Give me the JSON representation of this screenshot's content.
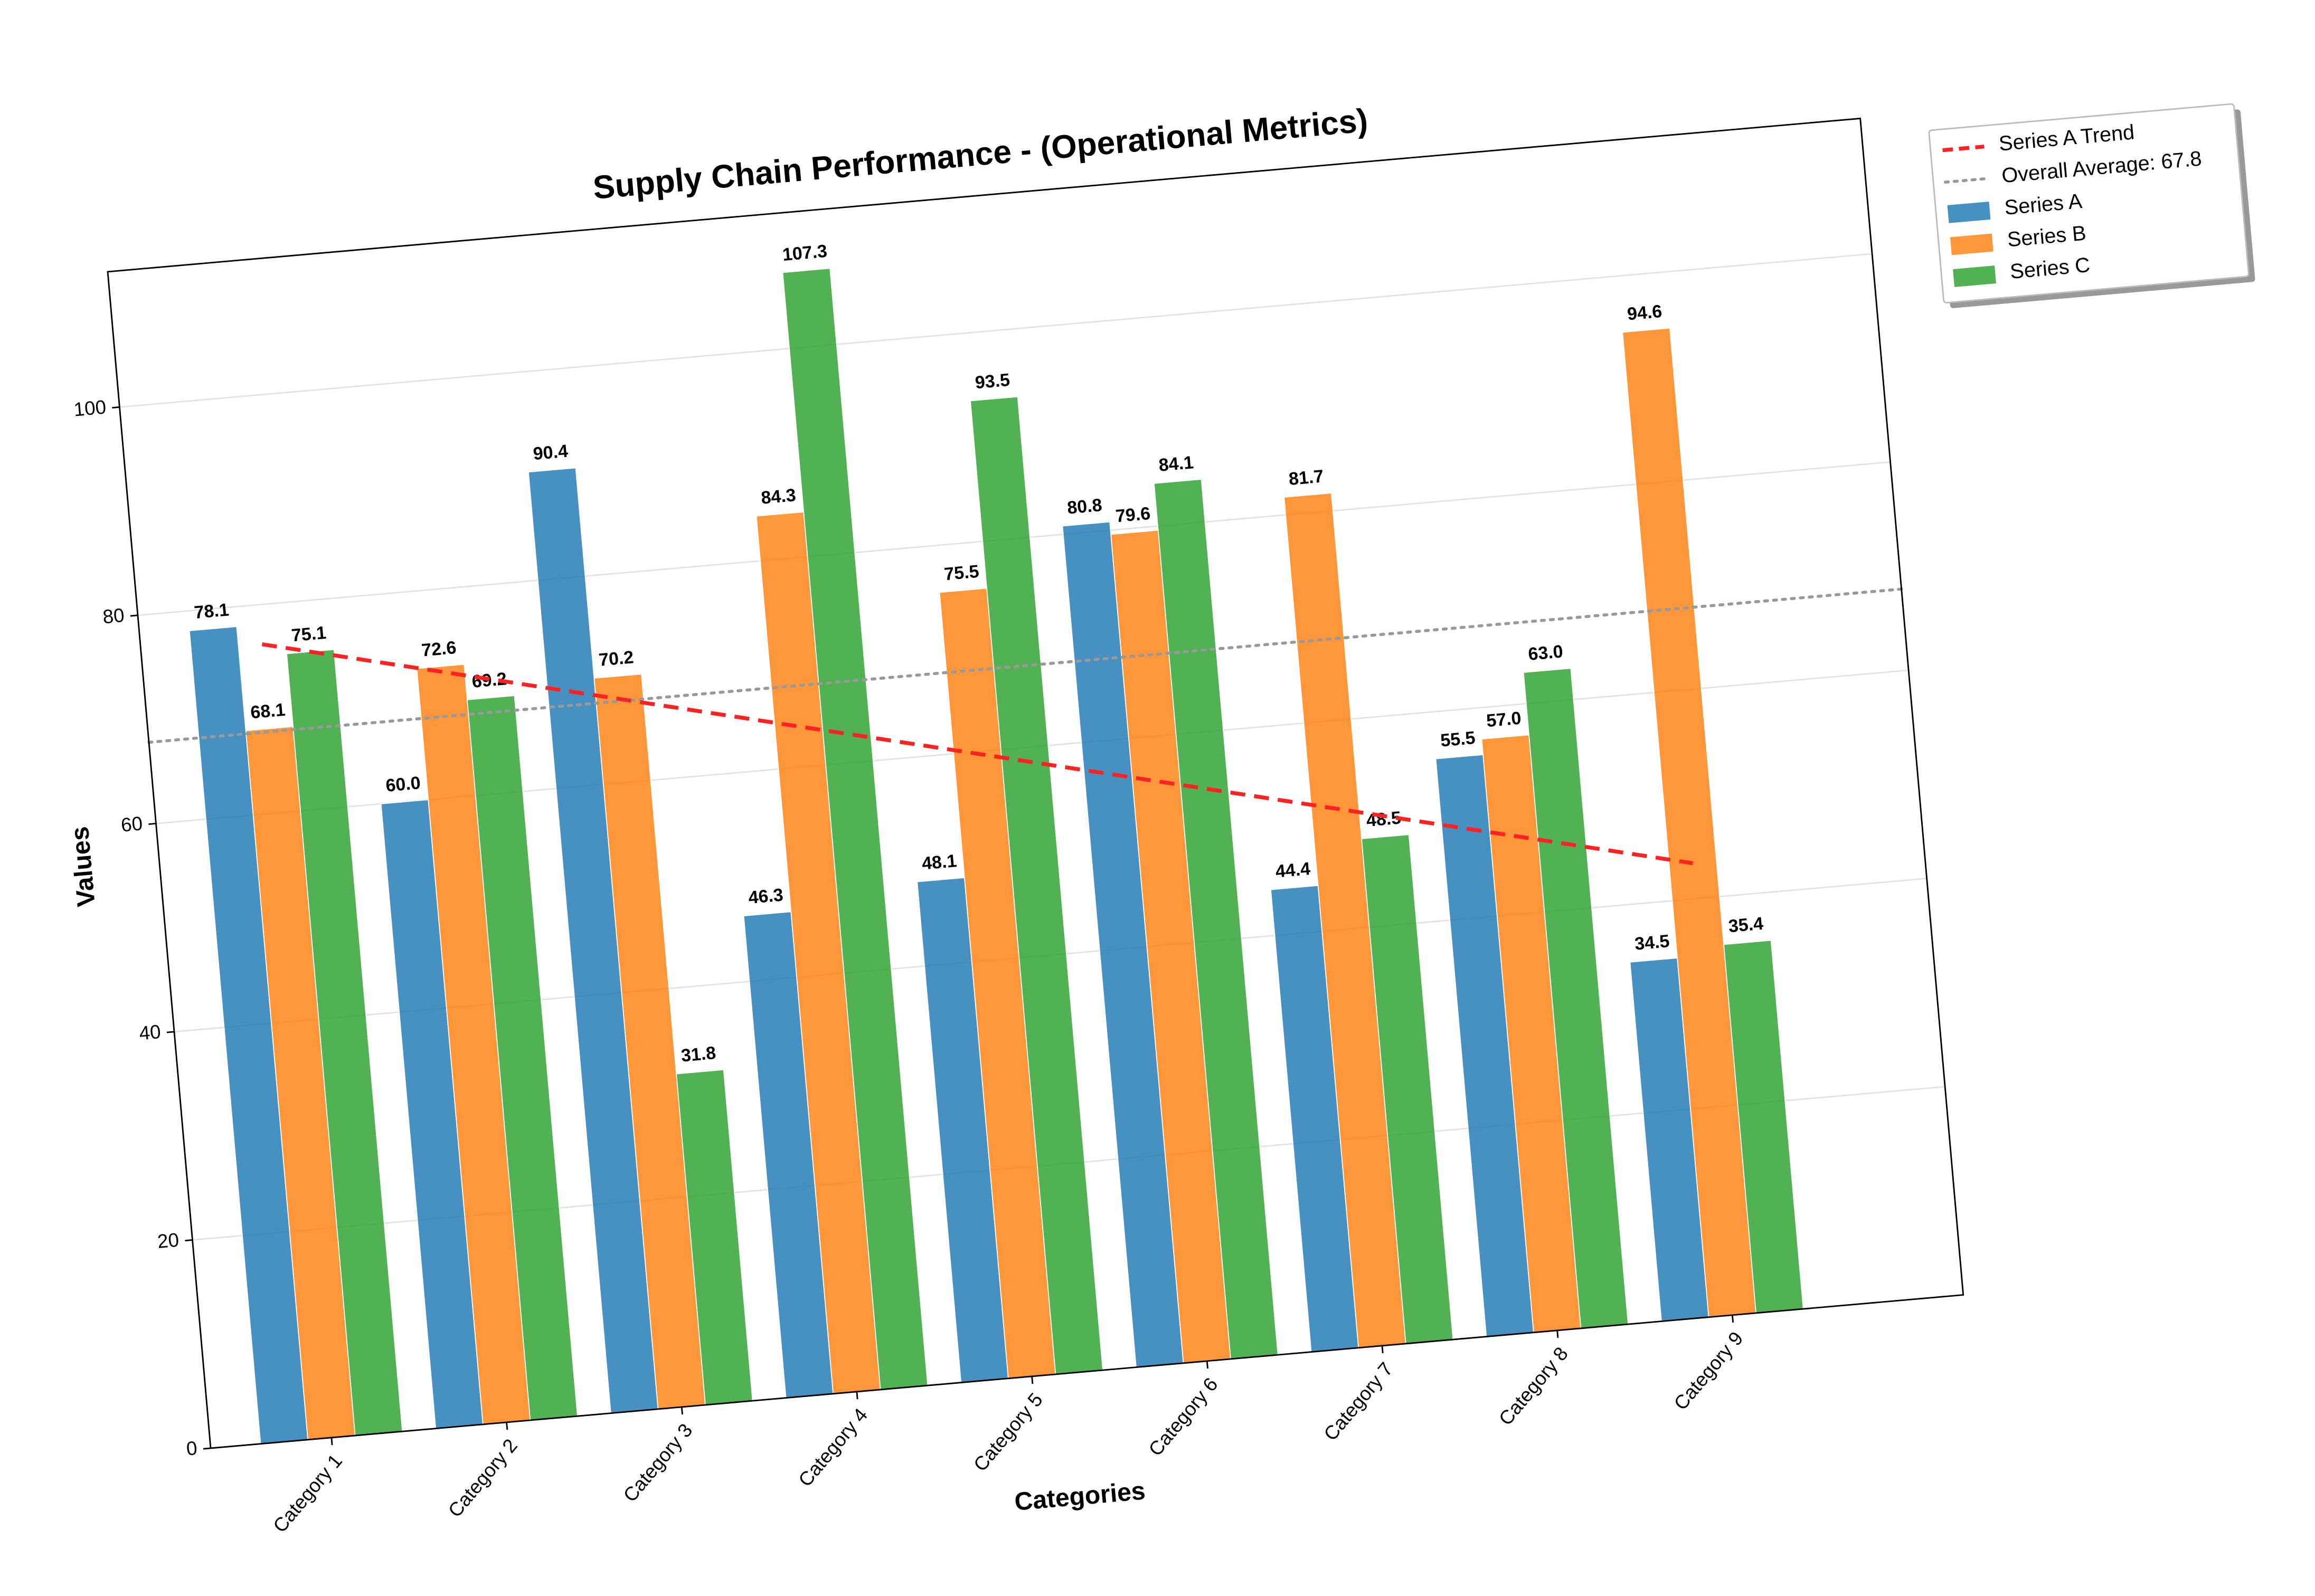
{
  "chart_data": {
    "type": "bar",
    "title": "Supply Chain Performance - (Operational Metrics)",
    "x_label": "Categories",
    "y_label": "Values",
    "categories": [
      "Category 1",
      "Category 2",
      "Category 3",
      "Category 4",
      "Category 5",
      "Category 6",
      "Category 7",
      "Category 8",
      "Category 9"
    ],
    "series": [
      {
        "name": "Series A",
        "color": "#1f77b4",
        "values": [
          78.1,
          60.0,
          90.4,
          46.3,
          48.1,
          80.8,
          44.4,
          55.5,
          34.5
        ],
        "value_labels": [
          "78.1",
          "60.0",
          "90.4",
          "46.3",
          "48.1",
          "80.8",
          "44.4",
          "55.5",
          "34.5"
        ]
      },
      {
        "name": "Series B",
        "color": "#ff7f0e",
        "values": [
          68.1,
          72.6,
          70.2,
          84.3,
          75.5,
          79.6,
          81.7,
          57.0,
          94.6
        ],
        "value_labels": [
          "68.1",
          "72.6",
          "70.2",
          "84.3",
          "75.5",
          "79.6",
          "81.7",
          "57.0",
          "94.6"
        ]
      },
      {
        "name": "Series C",
        "color": "#2ca02c",
        "values": [
          75.1,
          69.2,
          31.8,
          107.3,
          93.5,
          84.1,
          48.5,
          63.0,
          35.4
        ],
        "value_labels": [
          "75.1",
          "69.2",
          "31.8",
          "107.3",
          "93.5",
          "84.1",
          "48.5",
          "63.0",
          "35.4"
        ]
      }
    ],
    "trend": {
      "name": "Series A Trend",
      "color": "#ff2222",
      "categories": [
        "Category 1",
        "Category 9"
      ],
      "values": [
        76.2,
        43.4
      ]
    },
    "average": {
      "name": "Overall Average: 67.8",
      "color": "#999999",
      "value": 67.8
    },
    "ylim": [
      0,
      113
    ],
    "yticks": [
      0,
      20,
      40,
      60,
      80,
      100
    ],
    "grid": true,
    "legend": "outside upper right"
  }
}
